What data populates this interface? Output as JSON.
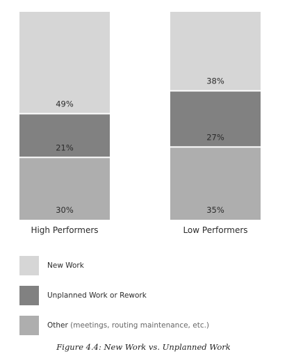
{
  "chart_data": {
    "type": "bar",
    "stacked": true,
    "orientation": "vertical-stacked-100",
    "categories": [
      "High Performers",
      "Low Performers"
    ],
    "series": [
      {
        "name": "Other",
        "values": [
          30,
          35
        ],
        "labels": [
          "30%",
          "35%"
        ],
        "color": "#aeaeae"
      },
      {
        "name": "Unplanned Work or Rework",
        "values": [
          21,
          27
        ],
        "labels": [
          "21%",
          "27%"
        ],
        "color": "#818181"
      },
      {
        "name": "New Work",
        "values": [
          49,
          38
        ],
        "labels": [
          "49%",
          "38%"
        ],
        "color": "#d6d6d6"
      }
    ],
    "ylim": [
      0,
      100
    ],
    "grid": false,
    "legend_position": "bottom-left",
    "caption": "Figure 4.4: New Work vs. Unplanned Work"
  },
  "legend": {
    "items": [
      {
        "label": "New Work",
        "note": "",
        "color": "#d6d6d6"
      },
      {
        "label": "Unplanned Work or Rework",
        "note": "",
        "color": "#818181"
      },
      {
        "label": "Other",
        "note": "(meetings, routing maintenance, etc.)",
        "color": "#aeaeae"
      }
    ]
  }
}
